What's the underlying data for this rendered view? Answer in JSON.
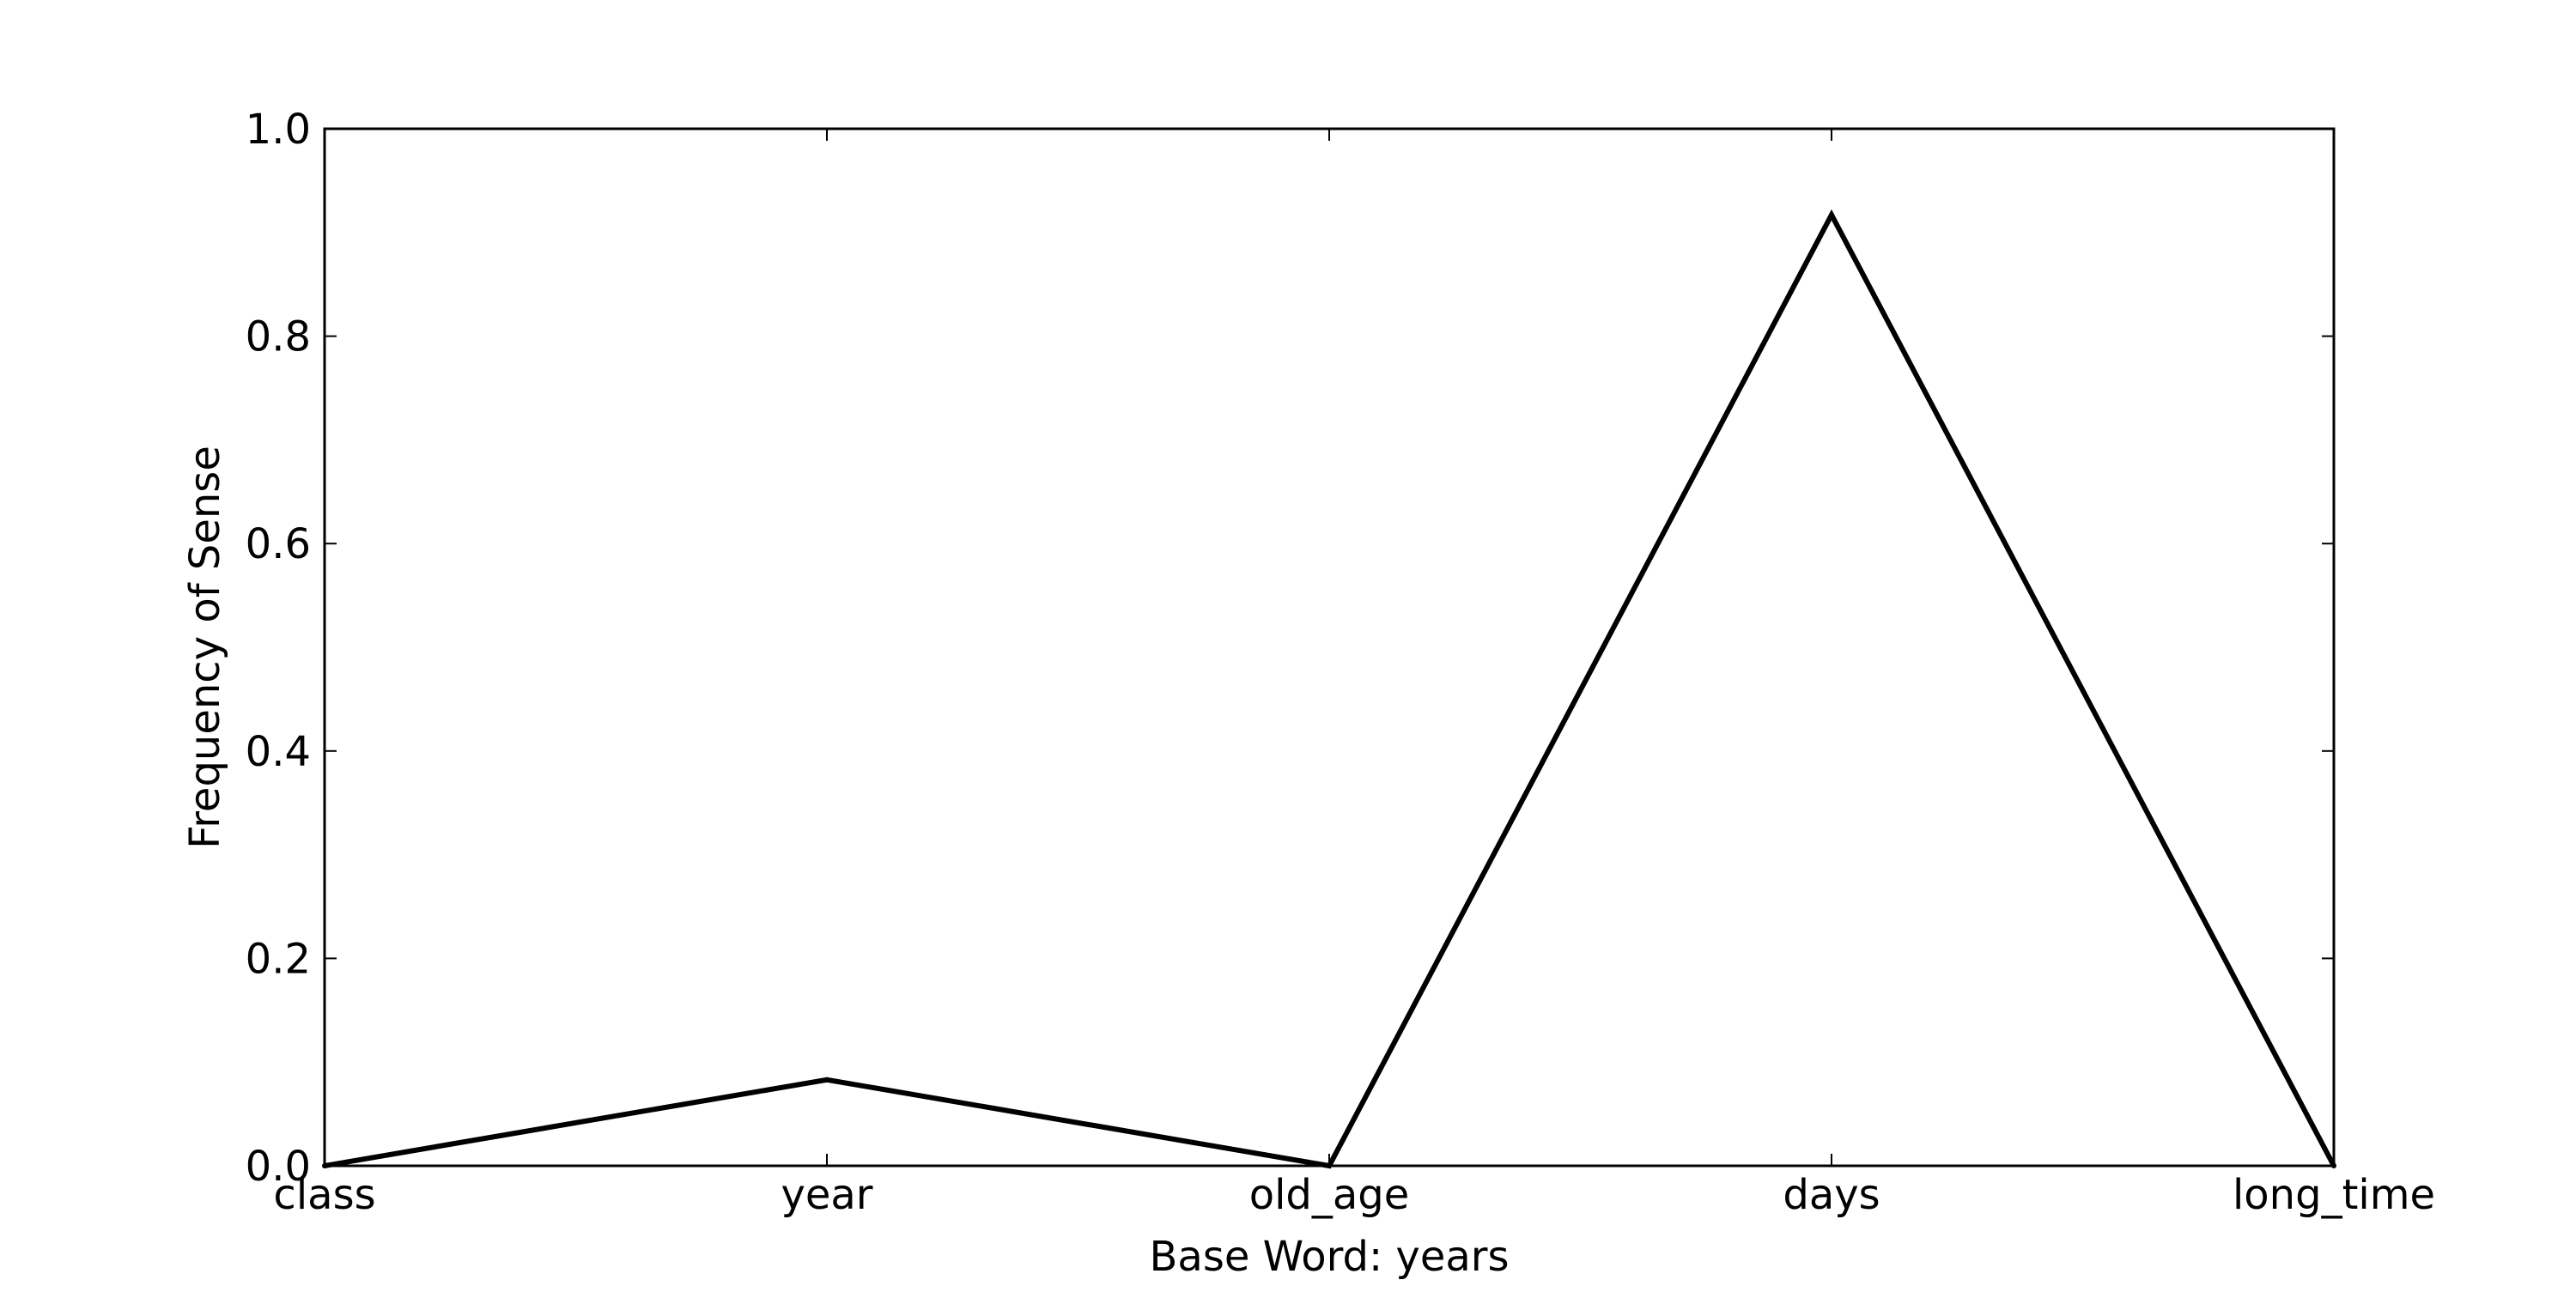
{
  "chart_data": {
    "type": "line",
    "categories": [
      "class",
      "year",
      "old_age",
      "days",
      "long_time"
    ],
    "series": [
      {
        "values": [
          0.0,
          0.083,
          0.0,
          0.917,
          0.0
        ]
      }
    ],
    "xlabel": "Base Word: years",
    "ylabel": "Frequency of Sense",
    "ylim": [
      0.0,
      1.0
    ],
    "yticks": [
      0.0,
      0.2,
      0.4,
      0.6,
      0.8,
      1.0
    ],
    "ytick_labels": [
      "0.0",
      "0.2",
      "0.4",
      "0.6",
      "0.8",
      "1.0"
    ],
    "grid": false,
    "legend": "none",
    "line_color": "#000000"
  }
}
